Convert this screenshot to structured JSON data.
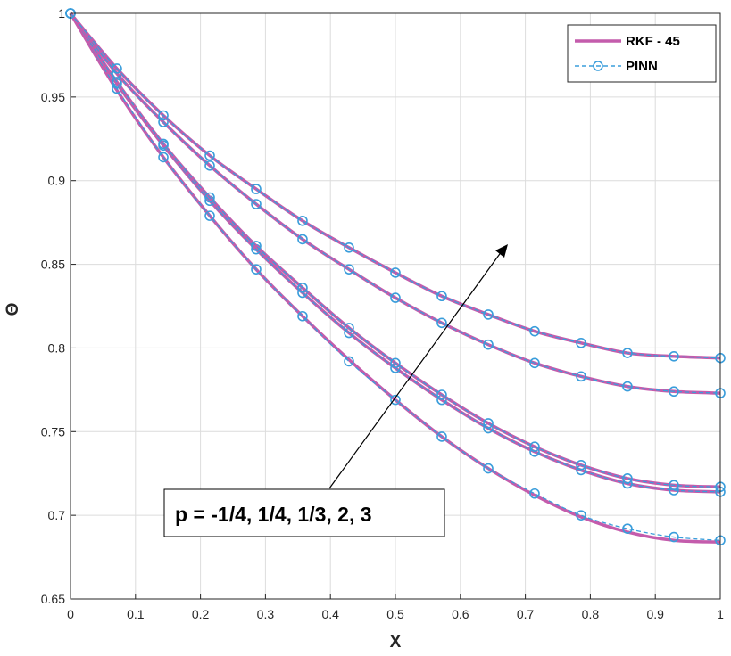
{
  "chart_data": {
    "type": "line",
    "xlabel": "X",
    "ylabel": "Θ",
    "xlim": [
      0,
      1
    ],
    "ylim": [
      0.65,
      1
    ],
    "xticks": [
      0,
      0.1,
      0.2,
      0.3,
      0.4,
      0.5,
      0.6,
      0.7,
      0.8,
      0.9,
      1
    ],
    "yticks": [
      0.65,
      0.7,
      0.75,
      0.8,
      0.85,
      0.9,
      0.95,
      1
    ],
    "xtick_labels": [
      "0",
      "0.1",
      "0.2",
      "0.3",
      "0.4",
      "0.5",
      "0.6",
      "0.7",
      "0.8",
      "0.9",
      "1"
    ],
    "ytick_labels": [
      "0.65",
      "0.7",
      "0.75",
      "0.8",
      "0.85",
      "0.9",
      "0.95",
      "1"
    ],
    "grid": true,
    "legend_position": "top-right",
    "legend": [
      {
        "label": "RKF - 45",
        "style": "solid"
      },
      {
        "label": "PINN",
        "style": "dashed-circle"
      }
    ],
    "annotation": "p = -1/4, 1/4, 1/3, 2, 3",
    "x": [
      0,
      0.0714,
      0.1429,
      0.2143,
      0.2857,
      0.3571,
      0.4286,
      0.5,
      0.5714,
      0.6429,
      0.7143,
      0.7857,
      0.8571,
      0.9286,
      1.0
    ],
    "series": [
      {
        "rkf": [
          1.0,
          0.954,
          0.914,
          0.879,
          0.847,
          0.819,
          0.793,
          0.769,
          0.747,
          0.728,
          0.712,
          0.699,
          0.69,
          0.685,
          0.684
        ],
        "pinn": [
          1.0,
          0.955,
          0.914,
          0.879,
          0.847,
          0.819,
          0.792,
          0.769,
          0.747,
          0.728,
          0.713,
          0.7,
          0.692,
          0.687,
          0.685
        ]
      },
      {
        "rkf": [
          1.0,
          0.958,
          0.921,
          0.888,
          0.859,
          0.833,
          0.809,
          0.788,
          0.769,
          0.752,
          0.738,
          0.727,
          0.719,
          0.715,
          0.714
        ],
        "pinn": [
          1.0,
          0.958,
          0.921,
          0.888,
          0.859,
          0.833,
          0.809,
          0.788,
          0.769,
          0.752,
          0.738,
          0.727,
          0.719,
          0.715,
          0.714
        ]
      },
      {
        "rkf": [
          1.0,
          0.959,
          0.922,
          0.89,
          0.861,
          0.836,
          0.812,
          0.791,
          0.772,
          0.755,
          0.741,
          0.73,
          0.722,
          0.718,
          0.717
        ],
        "pinn": [
          1.0,
          0.959,
          0.922,
          0.89,
          0.861,
          0.836,
          0.812,
          0.791,
          0.772,
          0.755,
          0.741,
          0.73,
          0.722,
          0.718,
          0.717
        ]
      },
      {
        "rkf": [
          1.0,
          0.964,
          0.935,
          0.909,
          0.886,
          0.865,
          0.847,
          0.83,
          0.815,
          0.802,
          0.791,
          0.783,
          0.777,
          0.774,
          0.773
        ],
        "pinn": [
          1.0,
          0.964,
          0.935,
          0.909,
          0.886,
          0.865,
          0.847,
          0.83,
          0.815,
          0.802,
          0.791,
          0.783,
          0.777,
          0.774,
          0.773
        ]
      },
      {
        "rkf": [
          1.0,
          0.967,
          0.939,
          0.915,
          0.895,
          0.876,
          0.86,
          0.845,
          0.831,
          0.82,
          0.81,
          0.803,
          0.797,
          0.795,
          0.794
        ],
        "pinn": [
          1.0,
          0.967,
          0.939,
          0.915,
          0.895,
          0.876,
          0.86,
          0.845,
          0.831,
          0.82,
          0.81,
          0.803,
          0.797,
          0.795,
          0.794
        ]
      }
    ],
    "colors": {
      "rkf": "#c45cac",
      "pinn": "#3a9ddb",
      "grid": "#dcdcdc",
      "axis": "#262626"
    }
  }
}
